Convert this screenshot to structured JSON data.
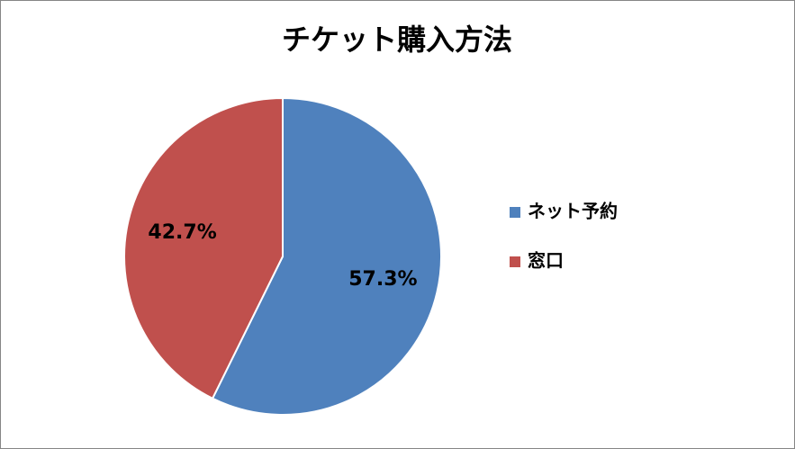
{
  "chart_data": {
    "type": "pie",
    "title": "チケット購入方法",
    "categories": [
      "ネット予約",
      "窓口"
    ],
    "values": [
      57.3,
      42.7
    ],
    "value_labels": [
      "57.3%",
      "42.7%"
    ],
    "colors": [
      "#4f81bd",
      "#c0504d"
    ],
    "legend": "right"
  }
}
